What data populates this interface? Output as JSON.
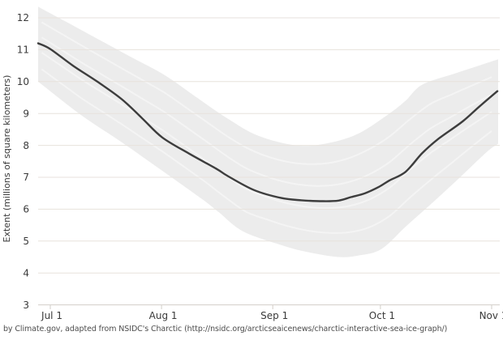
{
  "caption": "by Climate.gov, adapted from NSIDC's Charctic (http://nsidc.org/arcticseaicenews/charctic-interactive-sea-ice-graph/)",
  "chart_data": {
    "type": "line",
    "title": "",
    "xlabel": "",
    "ylabel": "Extent (millions of square kilometers)",
    "grid": "horizontal",
    "legend": "none",
    "ylim": [
      3,
      12.5
    ],
    "xlim_days_from_jul1": [
      -3.4,
      124.8
    ],
    "y_ticks": [
      3,
      4,
      5,
      6,
      7,
      8,
      9,
      10,
      11,
      12
    ],
    "x_ticks": [
      {
        "label": "Jul 1",
        "day": 0
      },
      {
        "label": "Aug 1",
        "day": 31
      },
      {
        "label": "Sep 1",
        "day": 62
      },
      {
        "label": "Oct 1",
        "day": 92
      },
      {
        "label": "Nov 1",
        "day": 123
      }
    ],
    "series": [
      {
        "name": "sea-ice-extent-line",
        "color": "#3d3d3d",
        "points_day_value": [
          [
            -3.4,
            11.2
          ],
          [
            0,
            11.02
          ],
          [
            6.3,
            10.5
          ],
          [
            13.1,
            10.0
          ],
          [
            19.9,
            9.45
          ],
          [
            25.6,
            8.85
          ],
          [
            31.2,
            8.25
          ],
          [
            38.7,
            7.74
          ],
          [
            46.4,
            7.26
          ],
          [
            49.3,
            7.05
          ],
          [
            56.8,
            6.6
          ],
          [
            64.4,
            6.35
          ],
          [
            70,
            6.28
          ],
          [
            76,
            6.25
          ],
          [
            80.3,
            6.27
          ],
          [
            83.9,
            6.38
          ],
          [
            87.7,
            6.5
          ],
          [
            91.6,
            6.7
          ],
          [
            94.5,
            6.9
          ],
          [
            99,
            7.17
          ],
          [
            103.6,
            7.75
          ],
          [
            108.1,
            8.2
          ],
          [
            114.9,
            8.75
          ],
          [
            119.4,
            9.2
          ],
          [
            124.6,
            9.7
          ]
        ]
      }
    ],
    "band": {
      "name": "historical-range-band",
      "color": "#ececec",
      "top_day_value": [
        [
          -3.4,
          12.35
        ],
        [
          4,
          11.9
        ],
        [
          13,
          11.35
        ],
        [
          22,
          10.8
        ],
        [
          31.9,
          10.2
        ],
        [
          40.2,
          9.55
        ],
        [
          49.3,
          8.85
        ],
        [
          58,
          8.3
        ],
        [
          68.5,
          8.0
        ],
        [
          76.5,
          8.05
        ],
        [
          85.5,
          8.35
        ],
        [
          94.5,
          9.0
        ],
        [
          99,
          9.4
        ],
        [
          103.6,
          9.9
        ],
        [
          112.6,
          10.25
        ],
        [
          119.4,
          10.5
        ],
        [
          124.8,
          10.7
        ]
      ],
      "bottom_day_value": [
        [
          -3.4,
          10.0
        ],
        [
          8.6,
          8.95
        ],
        [
          19.9,
          8.1
        ],
        [
          31.9,
          7.15
        ],
        [
          42.5,
          6.3
        ],
        [
          47,
          5.9
        ],
        [
          53.8,
          5.3
        ],
        [
          65.1,
          4.85
        ],
        [
          72,
          4.65
        ],
        [
          80.3,
          4.5
        ],
        [
          86,
          4.55
        ],
        [
          92.3,
          4.75
        ],
        [
          99,
          5.45
        ],
        [
          106.5,
          6.2
        ],
        [
          114.2,
          7.0
        ],
        [
          121.7,
          7.8
        ],
        [
          124.8,
          8.05
        ]
      ]
    },
    "colors": {
      "line": "#3d3d3d",
      "band": "#ececec",
      "gridline": "#e7e2dc",
      "axis": "#d2cec8",
      "tick_text": "#3a3a3a",
      "caption_text": "#4c4c4c"
    }
  }
}
